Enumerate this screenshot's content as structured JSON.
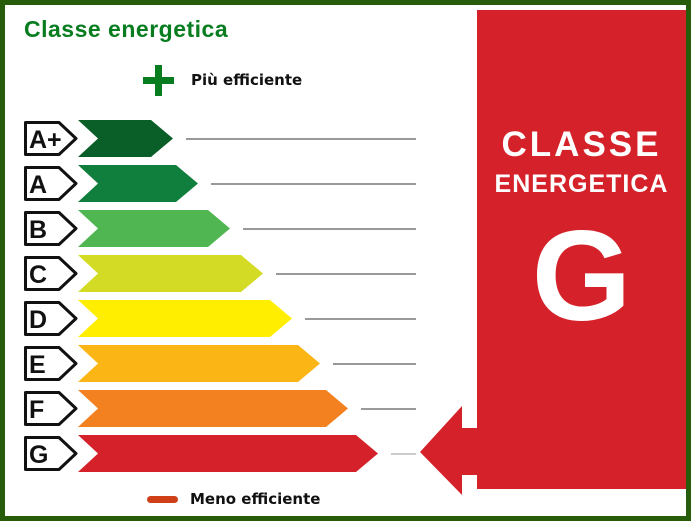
{
  "title": "Classe energetica",
  "legend_top": {
    "label": "Più efficiente",
    "icon": "plus-icon"
  },
  "legend_bottom": {
    "label": "Meno efficiente",
    "icon": "minus-icon"
  },
  "colors": {
    "border": "#265c0a",
    "title": "#087d20",
    "plus": "#087d20",
    "minus_dash": "#d04018",
    "panel": "#d5222a",
    "panel_text": "#ffffff",
    "line": "#999999",
    "line_last": "#cccccc",
    "label_outline": "#111111",
    "label_fill": "#ffffff",
    "letter": "#111111"
  },
  "classes": [
    {
      "label": "A+",
      "color": "#0a5e28",
      "tip": 173
    },
    {
      "label": "A",
      "color": "#107e3c",
      "tip": 198
    },
    {
      "label": "B",
      "color": "#50b651",
      "tip": 230
    },
    {
      "label": "C",
      "color": "#d4db25",
      "tip": 263
    },
    {
      "label": "D",
      "color": "#ffee00",
      "tip": 292
    },
    {
      "label": "E",
      "color": "#fbb615",
      "tip": 320
    },
    {
      "label": "F",
      "color": "#f3811f",
      "tip": 348
    },
    {
      "label": "G",
      "color": "#d5222a",
      "tip": 378
    }
  ],
  "rating_panel": {
    "line1": "CLASSE",
    "line2": "ENERGETICA",
    "value": "G"
  },
  "chart_data": {
    "type": "bar",
    "orientation": "horizontal",
    "title": "Classe energetica",
    "categories": [
      "A+",
      "A",
      "B",
      "C",
      "D",
      "E",
      "F",
      "G"
    ],
    "values": [
      95,
      120,
      152,
      185,
      214,
      242,
      270,
      300
    ],
    "bar_colors": [
      "#0a5e28",
      "#107e3c",
      "#50b651",
      "#d4db25",
      "#ffee00",
      "#fbb615",
      "#f3811f",
      "#d5222a"
    ],
    "selected_category": "G",
    "annotations": [
      "Più efficiente",
      "Meno efficiente"
    ],
    "legend_position": "none",
    "grid": false
  }
}
